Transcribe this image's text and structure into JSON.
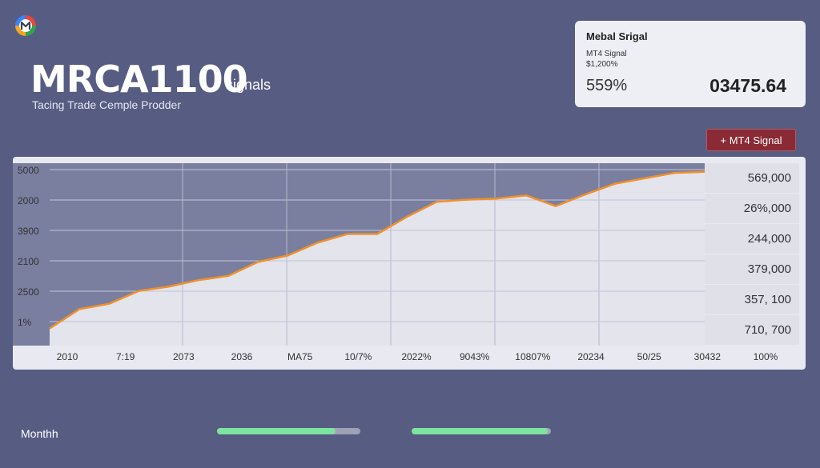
{
  "header": {
    "logo_icon": "brand-logo-icon",
    "title": "MRCA1100",
    "title_suffix": "signals",
    "subtitle": "Tacing Trade Cemple Prodder"
  },
  "signal_card": {
    "title": "Mebal Srigal",
    "subtitle_1": "MT4 Signal",
    "subtitle_2": "$1,200%",
    "percentage": "559%",
    "value": "03475.64"
  },
  "badge": {
    "label": "+ MT4 Signal",
    "color": "#8a2a35"
  },
  "chart_data": {
    "type": "area",
    "y_tick_labels": [
      "5000",
      "2000",
      "3900",
      "2100",
      "2500",
      "1%"
    ],
    "x_tick_labels": [
      "2010",
      "7:19",
      "2073",
      "2036",
      "MA75",
      "10/7%",
      "2022%",
      "9043%",
      "10807%",
      "20234",
      "50/25",
      "30432",
      "100%"
    ],
    "right_values": [
      "569,000",
      "26%,000",
      "244,000",
      "379,000",
      "357, 100",
      "710, 700"
    ],
    "series": [
      {
        "values": [
          16,
          34,
          39,
          51,
          55,
          61,
          65,
          78,
          84,
          96,
          104,
          104,
          120,
          134,
          136,
          137,
          140,
          130,
          141,
          151,
          156,
          161,
          162
        ]
      }
    ],
    "ylim": [
      0,
      170
    ],
    "line_color": "#f0902a",
    "area_color": "#e3e4ec",
    "grid": true
  },
  "footer": {
    "label": "Monthh",
    "progress_bars": [
      {
        "value": 0.82
      },
      {
        "value": 0.97
      }
    ]
  }
}
